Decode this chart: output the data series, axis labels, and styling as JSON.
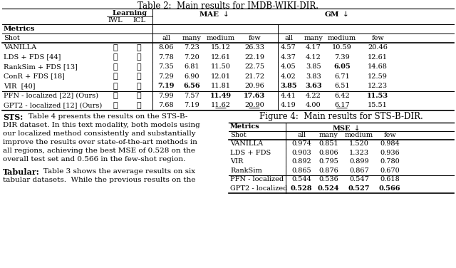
{
  "fig_title": "Figure 4:  Main results for STS-B-DIR.",
  "table1_title": "Table 2:  Main results for IMDB-WIKI-DIR.",
  "bg_color": "#ffffff",
  "t1_rows": [
    [
      "VANILLA",
      true,
      false,
      "8.06",
      "7.23",
      "15.12",
      "26.33",
      "4.57",
      "4.17",
      "10.59",
      "20.46"
    ],
    [
      "LDS + FDS [44]",
      true,
      false,
      "7.78",
      "7.20",
      "12.61",
      "22.19",
      "4.37",
      "4.12",
      "7.39",
      "12.61"
    ],
    [
      "RankSim + FDS [13]",
      true,
      false,
      "7.35",
      "6.81",
      "11.50",
      "22.75",
      "4.05",
      "3.85",
      "6.05",
      "14.68"
    ],
    [
      "ConR + FDS [18]",
      true,
      false,
      "7.29",
      "6.90",
      "12.01",
      "21.72",
      "4.02",
      "3.83",
      "6.71",
      "12.59"
    ],
    [
      "VIR  [40]",
      true,
      false,
      "7.19",
      "6.56",
      "11.81",
      "20.96",
      "3.85",
      "3.63",
      "6.51",
      "12.23"
    ]
  ],
  "t1_rows2": [
    [
      "PFN - localized [22] (Ours)",
      false,
      true,
      "7.99",
      "7.57",
      "11.49",
      "17.63",
      "4.41",
      "4.22",
      "6.42",
      "11.53"
    ],
    [
      "GPT2 - localized [12] (Ours)",
      false,
      true,
      "7.68",
      "7.19",
      "11.62",
      "20.90",
      "4.19",
      "4.00",
      "6.17",
      "15.51"
    ]
  ],
  "t2_rows": [
    [
      "VANILLA",
      "0.974",
      "0.851",
      "1.520",
      "0.984"
    ],
    [
      "LDS + FDS",
      "0.903",
      "0.806",
      "1.323",
      "0.936"
    ],
    [
      "VIR",
      "0.892",
      "0.795",
      "0.899",
      "0.780"
    ],
    [
      "RankSim",
      "0.865",
      "0.876",
      "0.867",
      "0.670"
    ]
  ],
  "t2_rows2": [
    [
      "PFN - localized",
      "0.544",
      "0.536",
      "0.547",
      "0.618"
    ],
    [
      "GPT2 - localized",
      "0.528",
      "0.524",
      "0.527",
      "0.566"
    ]
  ],
  "t1_bold": {
    "r0": [
      false,
      false,
      false,
      false,
      false,
      false,
      false,
      false
    ],
    "r1": [
      false,
      false,
      false,
      false,
      false,
      false,
      false,
      false
    ],
    "r2": [
      false,
      false,
      false,
      false,
      false,
      false,
      true,
      false
    ],
    "r3": [
      false,
      false,
      false,
      false,
      false,
      false,
      false,
      false
    ],
    "r4": [
      true,
      true,
      false,
      false,
      true,
      true,
      false,
      false
    ],
    "r5": [
      false,
      false,
      true,
      true,
      false,
      false,
      false,
      true
    ],
    "r6": [
      false,
      false,
      false,
      false,
      false,
      false,
      false,
      false
    ]
  },
  "t1_underline": {
    "r6": [
      false,
      false,
      true,
      true,
      false,
      false,
      true,
      false
    ]
  }
}
